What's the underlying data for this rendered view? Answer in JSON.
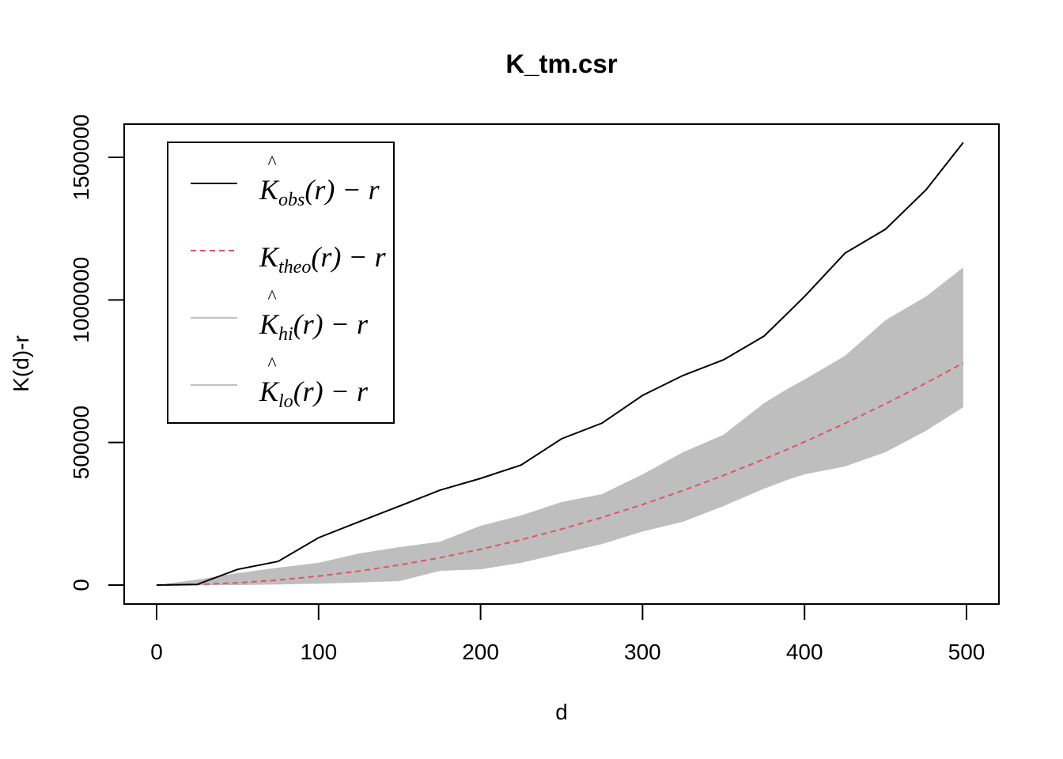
{
  "chart_data": {
    "type": "line",
    "title": "K_tm.csr",
    "xlabel": "d",
    "ylabel": "K(d)-r",
    "xlim": [
      0,
      500
    ],
    "ylim": [
      -60000,
      1620000
    ],
    "xticks": [
      0,
      100,
      200,
      300,
      400,
      500
    ],
    "xtick_labels": [
      "0",
      "100",
      "200",
      "300",
      "400",
      "500"
    ],
    "yticks": [
      0,
      500000,
      1000000,
      1500000
    ],
    "ytick_labels": [
      "0",
      "500000",
      "1000000",
      "1500000"
    ],
    "grid": false,
    "legend_position": "top-left",
    "colors": {
      "obs": "#000000",
      "theo": "#DF536B",
      "envelope": "#BEBEBE"
    },
    "legend": [
      {
        "symbol": "K",
        "hat": "^",
        "sub": "obs",
        "suffix": "(r) − r",
        "style": "solid",
        "color": "#000000"
      },
      {
        "symbol": "K",
        "hat": "",
        "sub": "theo",
        "suffix": "(r) − r",
        "style": "dashed",
        "color": "#DF536B"
      },
      {
        "symbol": "K",
        "hat": "^",
        "sub": "hi",
        "suffix": "(r) − r",
        "style": "solid",
        "color": "#BEBEBE"
      },
      {
        "symbol": "K",
        "hat": "^",
        "sub": "lo",
        "suffix": "(r) − r",
        "style": "solid",
        "color": "#BEBEBE"
      }
    ],
    "x": [
      0,
      25,
      50,
      75,
      100,
      125,
      150,
      175,
      200,
      225,
      250,
      275,
      300,
      325,
      350,
      375,
      390,
      400,
      425,
      450,
      475,
      498
    ],
    "series": [
      {
        "name": "obs",
        "values": [
          0,
          2000,
          55000,
          83000,
          166000,
          222000,
          277000,
          333000,
          374000,
          421000,
          513000,
          568000,
          665000,
          735000,
          790000,
          873000,
          956000,
          1012000,
          1164000,
          1248000,
          1386000,
          1552000
        ]
      },
      {
        "name": "theo",
        "values": [
          0,
          1938,
          7804,
          17596,
          31316,
          48962,
          70536,
          96036,
          125464,
          158818,
          196100,
          237308,
          282443,
          331505,
          384495,
          441411,
          477447,
          502255,
          566983,
          635723,
          708349,
          778671
        ]
      },
      {
        "name": "hi",
        "values": [
          0,
          19000,
          42000,
          61000,
          78000,
          111000,
          133000,
          152000,
          208000,
          244000,
          291000,
          319000,
          388000,
          466000,
          527000,
          638000,
          690000,
          721000,
          804000,
          929000,
          1012000,
          1114000
        ]
      },
      {
        "name": "lo",
        "values": [
          0,
          0,
          0,
          2000,
          5000,
          9000,
          14000,
          50000,
          55000,
          78000,
          111000,
          144000,
          188000,
          222000,
          277000,
          338000,
          370000,
          388000,
          416000,
          466000,
          541000,
          624000
        ]
      }
    ]
  }
}
